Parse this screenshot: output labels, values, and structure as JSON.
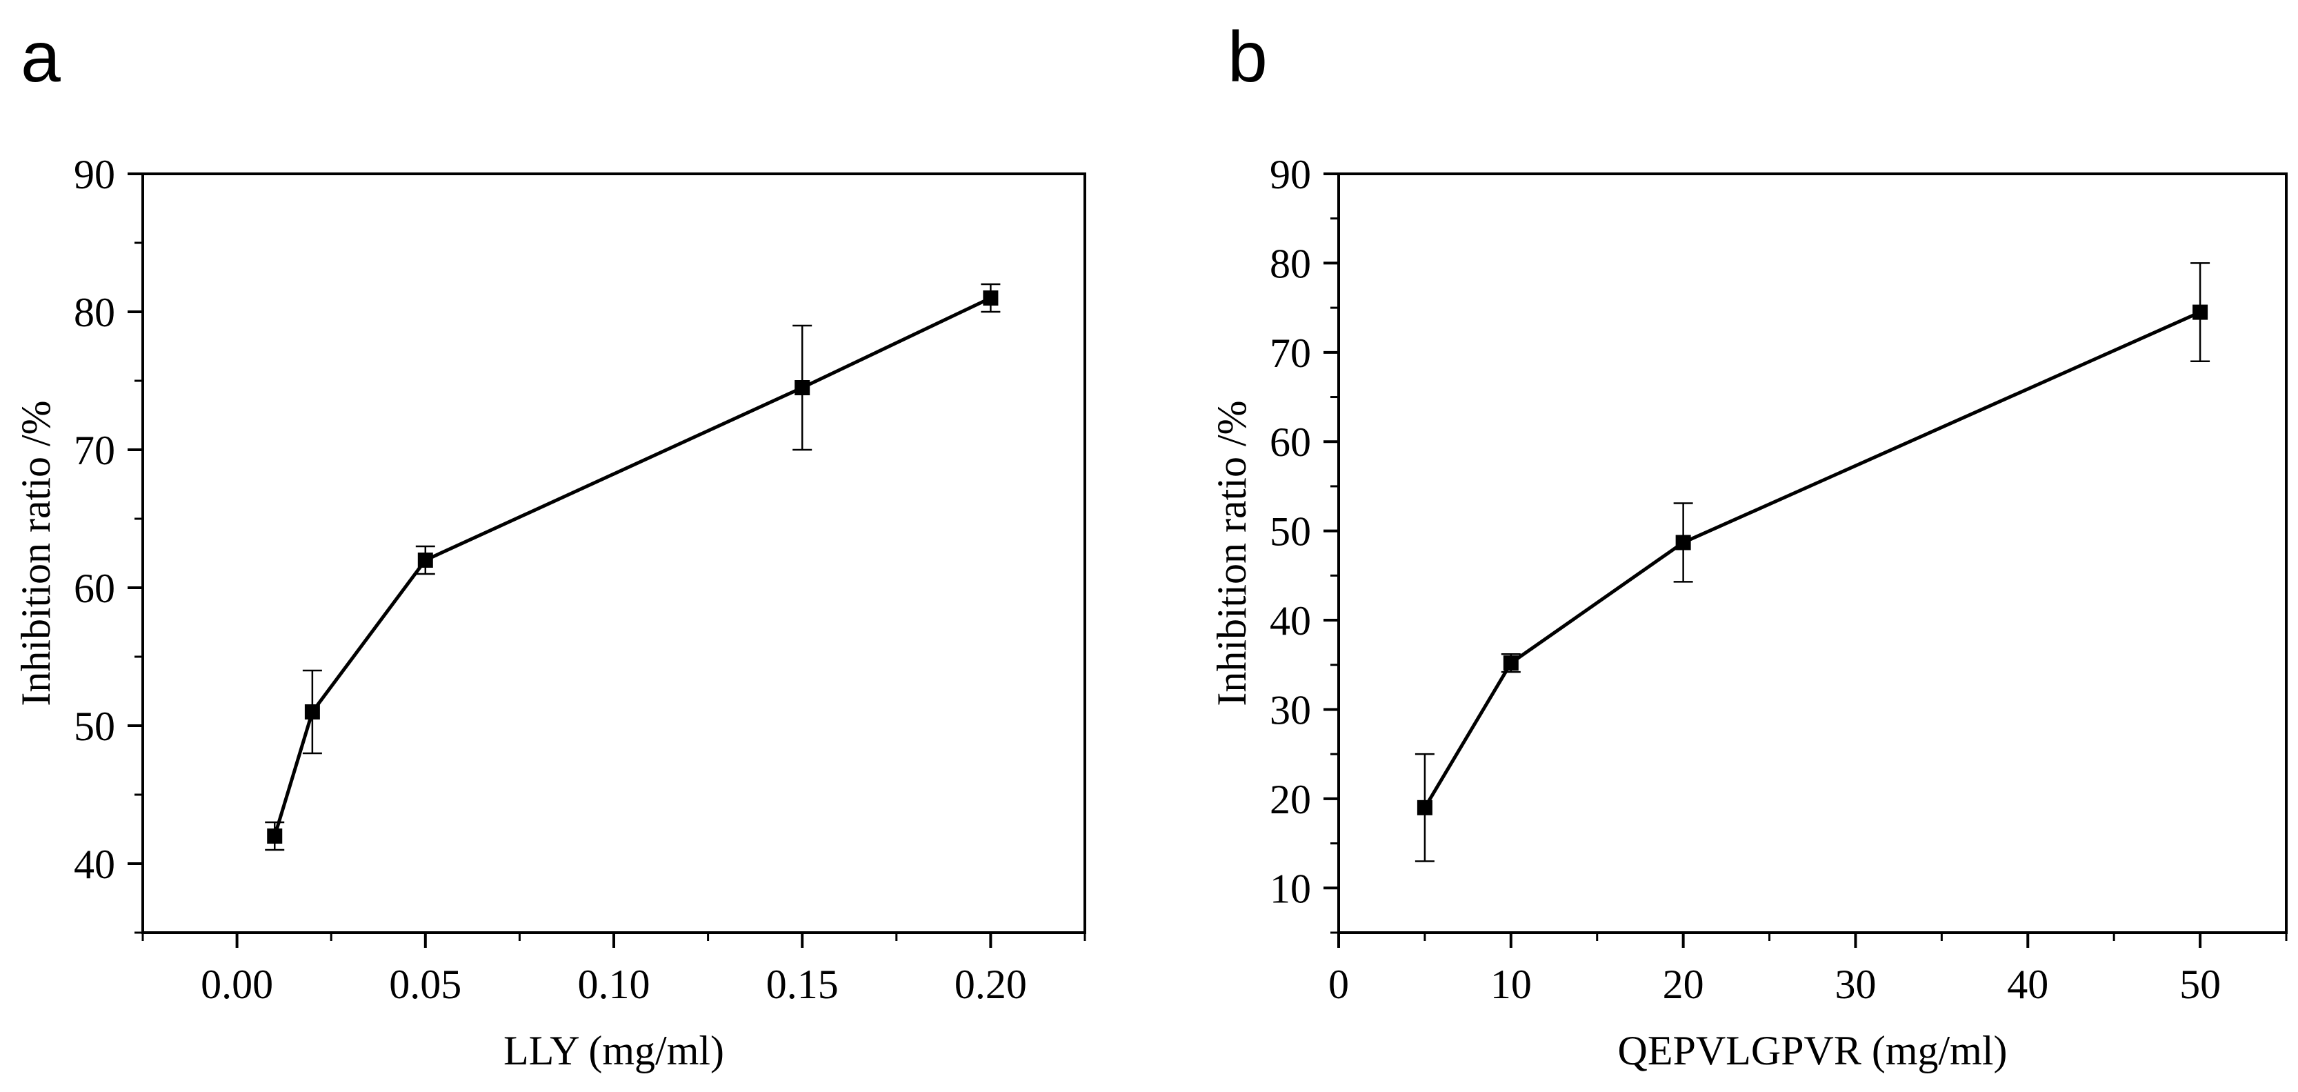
{
  "chart_data": [
    {
      "type": "line",
      "panel_label": "a",
      "title": "",
      "xlabel": "LLY (mg/ml)",
      "ylabel": "Inhibition ratio /%",
      "xlim": [
        -0.025,
        0.225
      ],
      "ylim": [
        35,
        90
      ],
      "xticks": [
        0.0,
        0.05,
        0.1,
        0.15,
        0.2
      ],
      "xtick_labels": [
        "0.00",
        "0.05",
        "0.10",
        "0.15",
        "0.20"
      ],
      "yticks": [
        40,
        50,
        60,
        70,
        80,
        90
      ],
      "ytick_labels": [
        "40",
        "50",
        "60",
        "70",
        "80",
        "90"
      ],
      "grid": false,
      "series": [
        {
          "name": "LLY",
          "marker": "square",
          "x": [
            0.01,
            0.02,
            0.05,
            0.15,
            0.2
          ],
          "y": [
            42,
            51,
            62,
            74.5,
            81
          ],
          "yerr": [
            1,
            3,
            1,
            4.5,
            1
          ]
        }
      ]
    },
    {
      "type": "line",
      "panel_label": "b",
      "title": "",
      "xlabel": "QEPVLGPVR (mg/ml)",
      "ylabel": "Inhibition ratio /%",
      "xlim": [
        0,
        55
      ],
      "ylim": [
        5,
        90
      ],
      "xticks": [
        0,
        10,
        20,
        30,
        40,
        50
      ],
      "xtick_labels": [
        "0",
        "10",
        "20",
        "30",
        "40",
        "50"
      ],
      "yticks": [
        10,
        20,
        30,
        40,
        50,
        60,
        70,
        80,
        90
      ],
      "ytick_labels": [
        "10",
        "20",
        "30",
        "40",
        "50",
        "60",
        "70",
        "80",
        "90"
      ],
      "grid": false,
      "series": [
        {
          "name": "QEPVLGPVR",
          "marker": "square",
          "x": [
            5,
            10,
            20,
            50
          ],
          "y": [
            19,
            35.2,
            48.7,
            74.5
          ],
          "yerr": [
            6,
            1,
            4.4,
            5.5
          ]
        }
      ]
    }
  ]
}
